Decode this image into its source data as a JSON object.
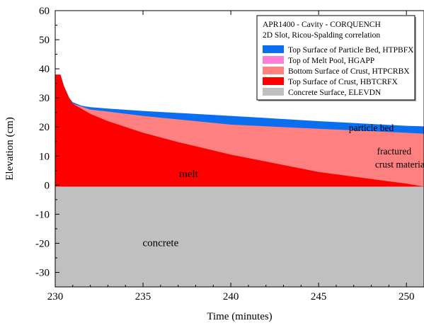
{
  "chart_data": {
    "type": "area",
    "xlabel": "Time (minutes)",
    "ylabel": "Elevation (cm)",
    "xlim": [
      230,
      251
    ],
    "ylim": [
      -35,
      60
    ],
    "x_ticks": [
      230,
      235,
      240,
      245,
      250
    ],
    "y_ticks": [
      -30,
      -20,
      -10,
      0,
      10,
      20,
      30,
      40,
      50,
      60
    ],
    "legend": {
      "placement": "top-right",
      "title_lines": [
        "APR1400 - Cavity - CORQUENCH",
        "2D Slot, Ricou-Spalding correlation"
      ],
      "entries": [
        {
          "label": "Top Surface of Particle Bed, HTPBFX",
          "color": "#0a6ef0"
        },
        {
          "label": "Top of Melt Pool, HGAPP",
          "color": "#ff7fd8"
        },
        {
          "label": "Bottom Surface of Crust, HTPCRBX",
          "color": "#ff8080"
        },
        {
          "label": "Top Surface of Crust, HBTCRFX",
          "color": "#ff0000"
        },
        {
          "label": "Concrete Surface, ELEVDN",
          "color": "#c0c0c0"
        }
      ]
    },
    "series": [
      {
        "name": "Top Surface of Particle Bed, HTPBFX",
        "x": [
          230.3,
          230.5,
          230.8,
          231.0,
          231.5,
          232,
          233,
          235,
          240,
          245,
          250,
          251
        ],
        "values": [
          38,
          34,
          30,
          28.5,
          27.3,
          26.8,
          26.3,
          25.5,
          23.8,
          22.0,
          20.4,
          20.2
        ]
      },
      {
        "name": "Bottom Surface of Crust, HTPCRBX",
        "x": [
          230.3,
          230.5,
          230.8,
          231.0,
          231.5,
          232,
          233,
          235,
          240,
          245,
          250,
          251
        ],
        "values": [
          38,
          34,
          30,
          28.0,
          27.0,
          26.0,
          25.3,
          23.8,
          20.8,
          19.4,
          18.0,
          17.7
        ]
      },
      {
        "name": "Top Surface of Crust, HBTCRFX",
        "x": [
          230.0,
          230.3,
          230.5,
          230.8,
          231.0,
          232,
          233,
          235,
          237,
          240,
          245,
          250,
          251
        ],
        "values": [
          38.0,
          38.0,
          34,
          30,
          28.0,
          24.5,
          22.0,
          18.0,
          14.8,
          10.5,
          4.5,
          0.5,
          -0.5
        ]
      },
      {
        "name": "Concrete Surface, ELEVDN",
        "x": [
          230,
          251
        ],
        "values": [
          -0.5,
          -0.5
        ]
      }
    ],
    "annotations": [
      {
        "text": "particle bed",
        "x": 248.0,
        "y": 18.6
      },
      {
        "text": "fractured",
        "x": 249.3,
        "y": 10.5
      },
      {
        "text": "crust material",
        "x": 249.7,
        "y": 6.0
      },
      {
        "text": "melt",
        "x": 237.6,
        "y": 2.8
      },
      {
        "text": "concrete",
        "x": 236.0,
        "y": -21.0
      }
    ],
    "grid": false
  }
}
